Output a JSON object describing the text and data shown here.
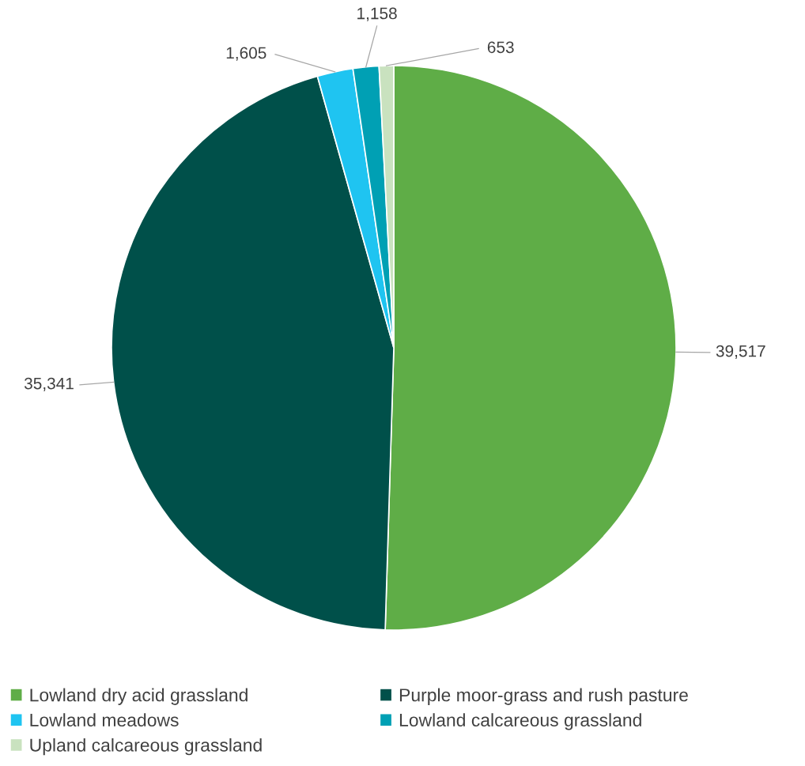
{
  "chart_data": {
    "type": "pie",
    "categories": [
      "Lowland dry acid grassland",
      "Purple moor-grass and rush pasture",
      "Lowland meadows",
      "Lowland calcareous grassland",
      "Upland calcareous grassland"
    ],
    "values": [
      39517,
      35341,
      1605,
      1158,
      653
    ],
    "colors": [
      "#5fad47",
      "#00504a",
      "#1fc4f1",
      "#00a0b4",
      "#c9e2bf"
    ],
    "value_labels": [
      "39,517",
      "35,341",
      "1,605",
      "1,158",
      "653"
    ],
    "legend": "bottom"
  }
}
